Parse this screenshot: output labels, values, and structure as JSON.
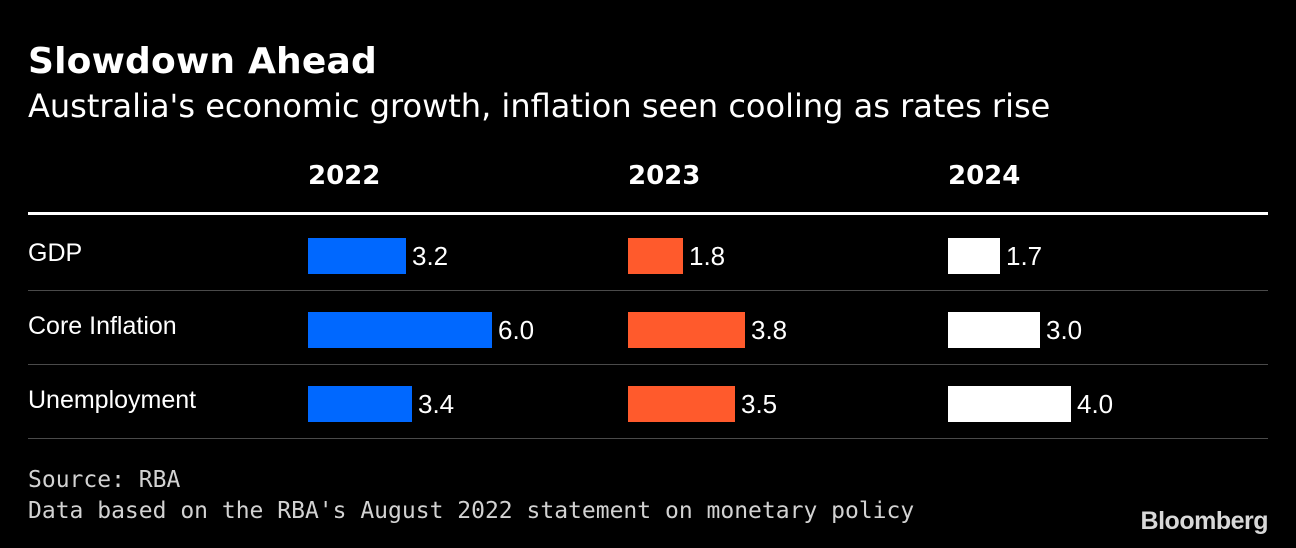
{
  "header": {
    "title": "Slowdown Ahead",
    "subtitle": "Australia's economic growth, inflation seen cooling as rates rise"
  },
  "footer": {
    "source": "Source: RBA",
    "note": "Data based on the RBA's August 2022 statement on monetary policy",
    "logo": "Bloomberg"
  },
  "colors": {
    "background": "#000000",
    "2022": "#0068ff",
    "2023": "#ff5a2c",
    "2024": "#ffffff"
  },
  "chart_data": {
    "type": "bar",
    "title": "Slowdown Ahead",
    "subtitle": "Australia's economic growth, inflation seen cooling as rates rise",
    "categories": [
      "GDP",
      "Core Inflation",
      "Unemployment"
    ],
    "series": [
      {
        "name": "2022",
        "values": [
          3.2,
          6.0,
          3.4
        ],
        "value_labels": [
          "3.2",
          "6.0",
          "3.4"
        ],
        "color": "#0068ff"
      },
      {
        "name": "2023",
        "values": [
          1.8,
          3.8,
          3.5
        ],
        "value_labels": [
          "1.8",
          "3.8",
          "3.5"
        ],
        "color": "#ff5a2c"
      },
      {
        "name": "2024",
        "values": [
          1.7,
          3.0,
          4.0
        ],
        "value_labels": [
          "1.7",
          "3.0",
          "4.0"
        ],
        "color": "#ffffff"
      }
    ],
    "orientation": "horizontal",
    "xlim": [
      0,
      6.0
    ],
    "grid": false,
    "legend": "column headers"
  }
}
